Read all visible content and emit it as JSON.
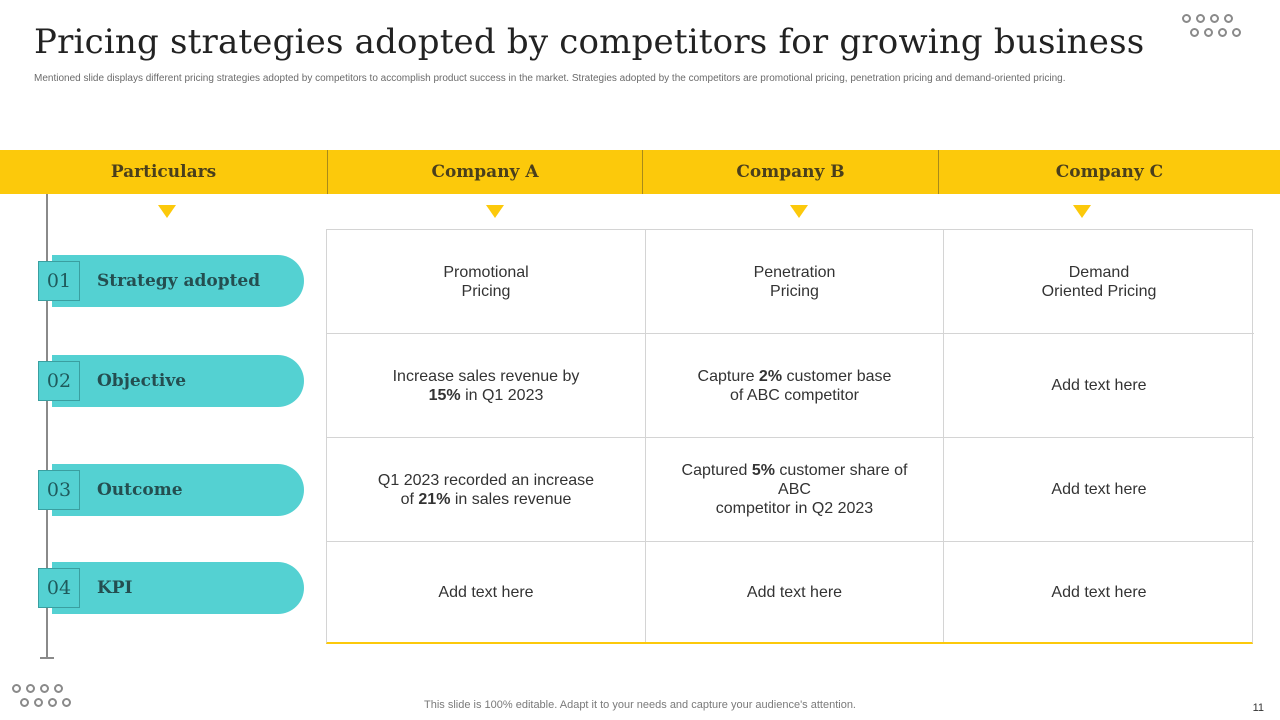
{
  "slide": {
    "title": "Pricing strategies adopted by competitors for growing business",
    "subtitle": "Mentioned slide displays different pricing strategies adopted by competitors to accomplish product success in the market. Strategies adopted by the competitors are promotional pricing, penetration pricing and demand-oriented pricing.",
    "footer": "This slide is 100% editable. Adapt it to your needs and capture your audience's attention.",
    "page_number": "11"
  },
  "header": {
    "particulars": "Particulars",
    "columns": [
      "Company A",
      "Company B",
      "Company C"
    ]
  },
  "rows": [
    {
      "num": "01",
      "label": "Strategy adopted"
    },
    {
      "num": "02",
      "label": "Objective"
    },
    {
      "num": "03",
      "label": "Outcome"
    },
    {
      "num": "04",
      "label": "KPI"
    }
  ],
  "cells": {
    "r0": {
      "a": {
        "l1": "Promotional",
        "l2": "Pricing"
      },
      "b": {
        "l1": "Penetration",
        "l2": "Pricing"
      },
      "c": {
        "l1": "Demand",
        "l2": "Oriented Pricing"
      }
    },
    "r1": {
      "a": {
        "pre": "Increase  sales revenue by",
        "bold": "15%",
        "post": " in Q1 2023"
      },
      "b": {
        "pre": "Capture ",
        "bold": "2%",
        "post": " customer base",
        "l2": "of ABC competitor"
      },
      "c": "Add text here"
    },
    "r2": {
      "a": {
        "l1": "Q1 2023 recorded an increase",
        "pre": "of ",
        "bold": "21%",
        "post": "  in sales revenue"
      },
      "b": {
        "pre": "Captured ",
        "bold": "5%",
        "post": " customer share of ABC",
        "l2": "competitor in Q2 2023"
      },
      "c": "Add text here"
    },
    "r3": {
      "a": "Add text here",
      "b": "Add text here",
      "c": "Add text here"
    }
  },
  "colors": {
    "accent_yellow": "#fcc90b",
    "accent_teal": "#54d1d2"
  },
  "icons": [
    "decorative-dots-icon",
    "triangle-pointer-icon"
  ]
}
